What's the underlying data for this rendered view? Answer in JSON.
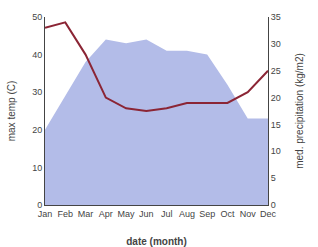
{
  "chart_data": {
    "type": "area",
    "categories": [
      "Jan",
      "Feb",
      "Mar",
      "Apr",
      "May",
      "Jun",
      "Jul",
      "Aug",
      "Sep",
      "Oct",
      "Nov",
      "Dec"
    ],
    "series": [
      {
        "type": "area",
        "color": "#b3bce8",
        "values": [
          20,
          29,
          38,
          44,
          43,
          44,
          41,
          41,
          40,
          32,
          23,
          23
        ]
      },
      {
        "type": "line",
        "color": "#8b2535",
        "axis": "y2",
        "values": [
          33,
          34,
          28,
          20,
          18,
          17.5,
          18,
          19,
          19,
          19,
          21,
          25
        ]
      }
    ],
    "xlabel": "date (month)",
    "ylabel": "max temp (C)",
    "y2label": "med. precipitation (kg/m2)",
    "ylim": [
      0,
      50
    ],
    "yticks": [
      0,
      10,
      20,
      30,
      40,
      50
    ],
    "y2lim": [
      0,
      35
    ],
    "y2ticks": [
      0,
      5,
      10,
      15,
      20,
      25,
      30,
      35
    ],
    "grid": false
  }
}
